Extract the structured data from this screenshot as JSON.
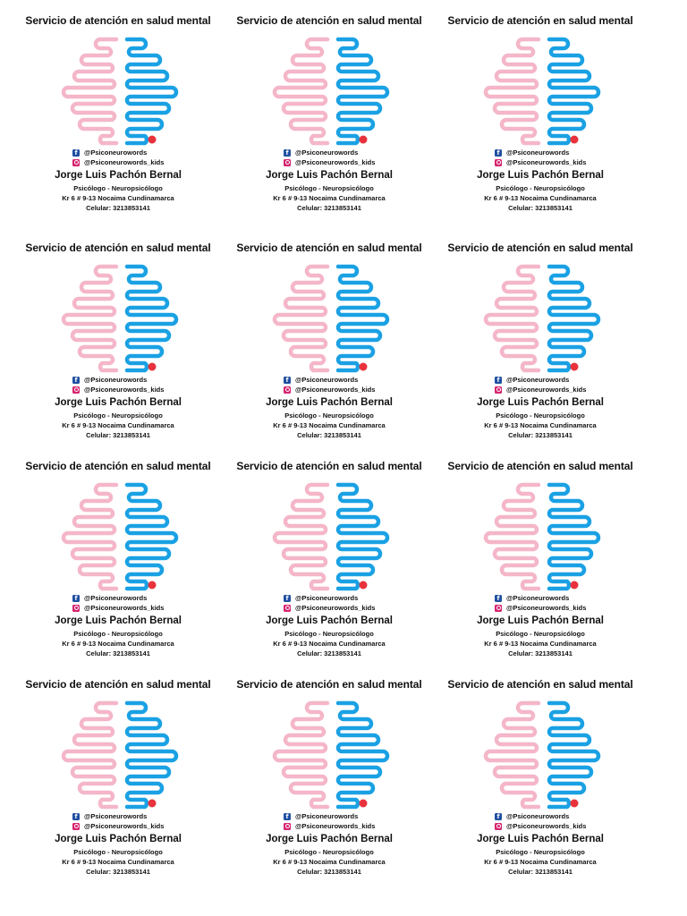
{
  "card": {
    "title": "Servicio de atención en salud mental",
    "facebook_icon_glyph": "f",
    "facebook_handle": "@Psiconeurowords",
    "instagram_handle": "@Psiconeurowords_kids",
    "name": "Jorge Luis Pachón Bernal",
    "profession": "Psicólogo - Neuropsicólogo",
    "address": "Kr 6 # 9-13 Nocaima Cundinamarca",
    "phone": "Celular: 3213853141"
  },
  "layout_info": {
    "rows": 4,
    "columns": 3
  },
  "colors": {
    "left_hemisphere": "#f4b6c8",
    "right_hemisphere": "#1aa1e4",
    "accent_dot": "#e8323c",
    "facebook": "#1f4fa0",
    "instagram": "#d6246f"
  },
  "icons": {
    "facebook": "facebook-icon",
    "instagram": "instagram-icon",
    "brain": "brain-logo-icon"
  }
}
